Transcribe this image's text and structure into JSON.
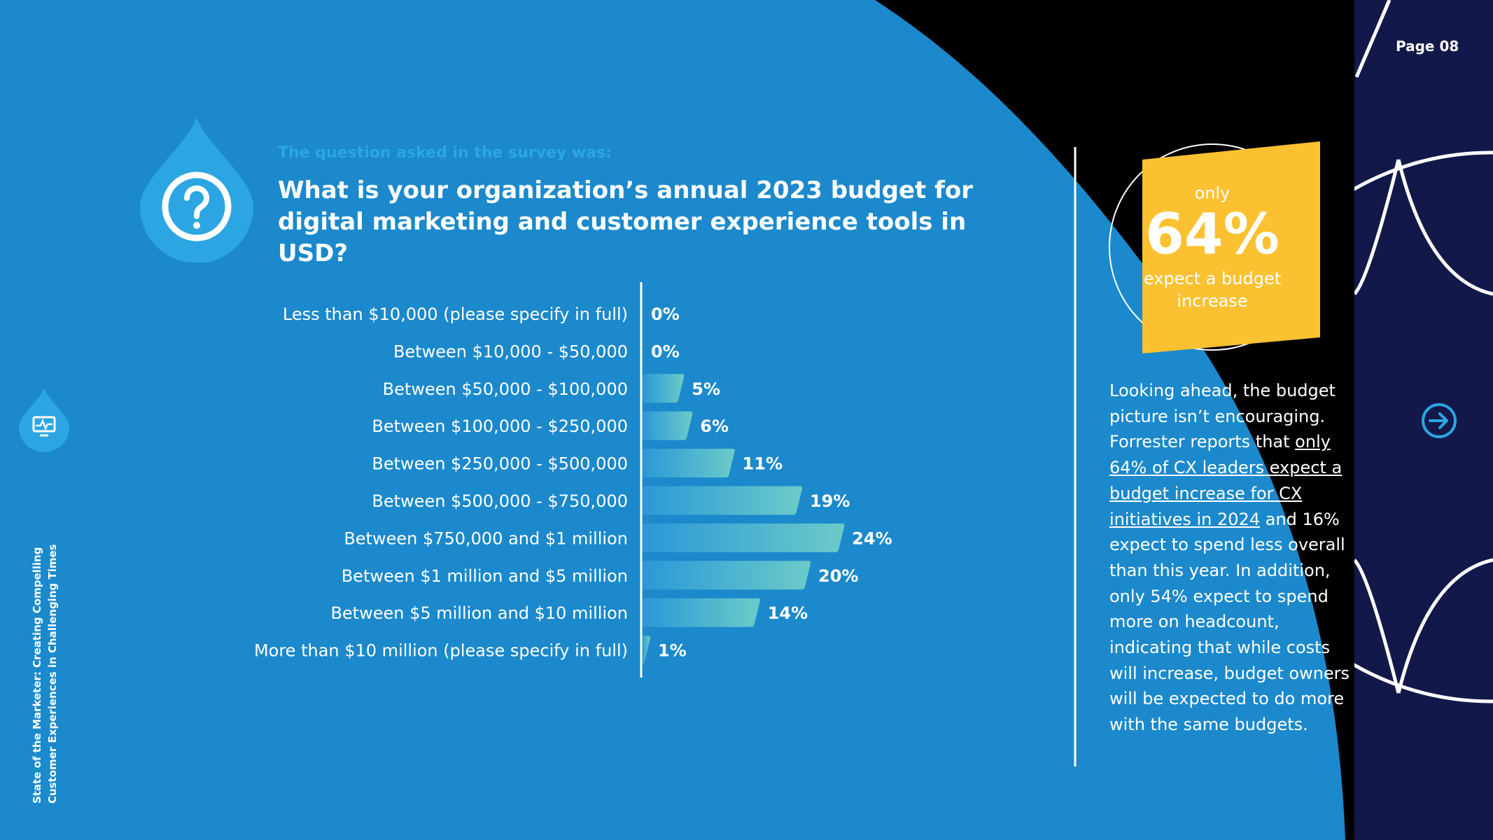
{
  "page": {
    "number": "Page 08"
  },
  "question": {
    "intro": "The question asked in the survey was:",
    "text": "What is your organization’s annual 2023 budget for digital marketing and customer experience tools in USD?"
  },
  "stat": {
    "pre": "only",
    "value": "64%",
    "caption": "expect a budget increase"
  },
  "side_text": {
    "p1": "Looking ahead, the budget picture isn’t encouraging. Forrester reports that ",
    "link": "only 64% of CX leaders expect a budget increase for CX initiatives in 2024",
    "p2": " and 16% expect to spend less overall than this year. In addition, only 54% expect to spend more on headcount, indicating that while costs will increase, budget owners will be expected to do more with the same budgets."
  },
  "report_title": {
    "line1": "State of the Marketer: Creating Compelling",
    "line2": "Customer Experiences in Challenging Times"
  },
  "icons": {
    "question": "question-mark-icon",
    "monitor": "monitor-chart-icon",
    "next": "arrow-right-circle-icon"
  },
  "colors": {
    "background": "#1b89cc",
    "dark_panel": "#12194a",
    "accent_yellow": "#fcc131",
    "bar_start": "#2a98d8",
    "bar_end": "#6ccbc8"
  },
  "chart_data": {
    "type": "bar",
    "orientation": "horizontal",
    "categories": [
      "Less than $10,000 (please specify in full)",
      "Between $10,000 - $50,000",
      "Between $50,000 - $100,000",
      "Between $100,000 - $250,000",
      "Between $250,000 - $500,000",
      "Between $500,000 - $750,000",
      "Between $750,000 and $1 million",
      "Between $1 million and $5 million",
      "Between $5 million and $10 million",
      "More than $10 million (please specify in full)"
    ],
    "values": [
      0,
      0,
      5,
      6,
      11,
      19,
      24,
      20,
      14,
      1
    ],
    "value_labels": [
      "0%",
      "0%",
      "5%",
      "6%",
      "11%",
      "19%",
      "24%",
      "20%",
      "14%",
      "1%"
    ],
    "unit": "%",
    "grid": false,
    "legend": "none"
  }
}
